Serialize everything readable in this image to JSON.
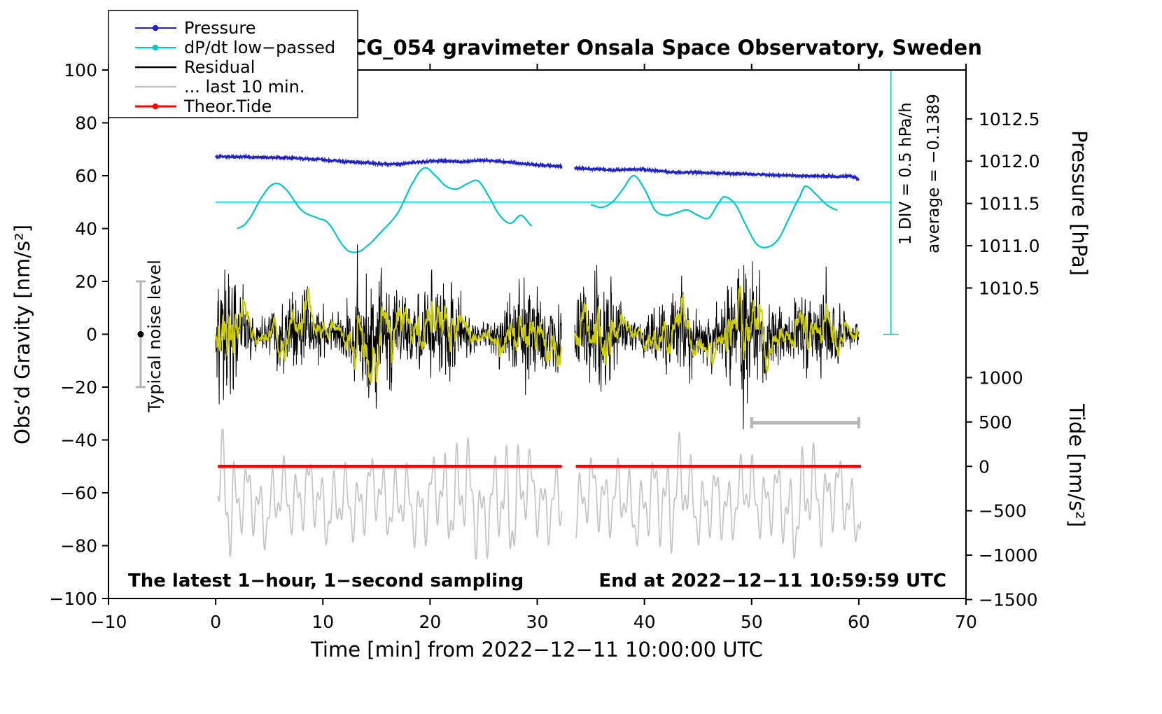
{
  "legend": {
    "items": [
      {
        "label": "Pressure",
        "color": "#2121cc",
        "marker": true,
        "width": 2
      },
      {
        "label": "dP/dt low−passed",
        "color": "#00c8c8",
        "marker": true,
        "width": 2
      },
      {
        "label": "Residual",
        "color": "#000000",
        "marker": false,
        "width": 2.5
      },
      {
        "label": "... last 10 min.",
        "color": "#c4c4c4",
        "marker": false,
        "width": 2.5
      },
      {
        "label": "Theor.Tide",
        "color": "#ff0000",
        "marker": true,
        "width": 3
      }
    ]
  },
  "axes": {
    "x": {
      "min": -10,
      "max": 70,
      "ticks": [
        -10,
        0,
        10,
        20,
        30,
        40,
        50,
        60,
        70
      ]
    },
    "y_left": {
      "min": -100,
      "max": 100,
      "ticks": [
        -100,
        -80,
        -60,
        -40,
        -20,
        0,
        20,
        40,
        60,
        80,
        100
      ]
    },
    "y_pressure": {
      "ticks": [
        1012.5,
        1012.0,
        1011.5,
        1011.0,
        1010.5
      ],
      "ref_value": 1012.5,
      "ref_gravity": 81.5,
      "gravity_per_unit": 32
    },
    "y_tide": {
      "ticks": [
        1000,
        500,
        0,
        -500,
        -1000,
        -1500
      ],
      "ref_value": 0,
      "ref_gravity": -50,
      "gravity_per_unit": 0.0336
    }
  },
  "annotations": {
    "noise_bar": {
      "label": "Typical noise level",
      "t": -7,
      "gravity_range": [
        -20,
        20
      ],
      "dot_gravity": 0,
      "color": "#b4b4b4"
    },
    "dpdt_scale": {
      "div_label": "1 DIV = 0.5 hPa/h",
      "average_label": "average = −0.1389",
      "t": 63,
      "gravity_range": [
        0,
        100
      ],
      "average_gravity": 50
    },
    "last10_bar": {
      "t_range": [
        50,
        60
      ],
      "gravity": -33.5,
      "color": "#b4b4b4"
    },
    "footer_left": "The latest 1−hour, 1−second sampling",
    "footer_right": "End at 2022−12−11 10:59:59 UTC"
  },
  "chart_data": {
    "type": "line",
    "title": "SCG_054 gravimeter Onsala Space Observatory, Sweden",
    "xlabel": "Time [min] from 2022−12−11 10:00:00 UTC",
    "ylabel_left": "Obs’d Gravity [nm/s²]",
    "ylabel_pressure": "Pressure [hPa]",
    "ylabel_tide": "Tide [nm/s²]",
    "xlim": [
      -10,
      70
    ],
    "ylim_left": [
      -100,
      100
    ],
    "time_gap_min": [
      32.3,
      33.5
    ],
    "series": [
      {
        "name": "Pressure",
        "unit": "hPa",
        "axis": "y_pressure",
        "color": "#2121cc",
        "style": "noisy-smooth",
        "width": 2,
        "jitter": 0.45,
        "segments": [
          [
            [
              0,
              1012.053
            ],
            [
              3,
              1012.047
            ],
            [
              6,
              1012.041
            ],
            [
              9,
              1012.025
            ],
            [
              12,
              1011.997
            ],
            [
              15,
              1011.972
            ],
            [
              17,
              1011.966
            ],
            [
              19,
              1011.991
            ],
            [
              21,
              1012.003
            ],
            [
              23,
              1011.994
            ],
            [
              25,
              1012.009
            ],
            [
              27,
              1011.991
            ],
            [
              29,
              1011.966
            ],
            [
              31,
              1011.947
            ],
            [
              32.3,
              1011.938
            ]
          ],
          [
            [
              33.5,
              1011.916
            ],
            [
              35,
              1011.906
            ],
            [
              37,
              1011.897
            ],
            [
              39,
              1011.903
            ],
            [
              41,
              1011.891
            ],
            [
              43,
              1011.869
            ],
            [
              45,
              1011.866
            ],
            [
              47,
              1011.856
            ],
            [
              49,
              1011.85
            ],
            [
              51,
              1011.841
            ],
            [
              53,
              1011.834
            ],
            [
              55,
              1011.825
            ],
            [
              57,
              1011.822
            ],
            [
              58.5,
              1011.816
            ],
            [
              59.3,
              1011.825
            ],
            [
              60,
              1011.781
            ]
          ]
        ]
      },
      {
        "name": "dP/dt low−passed",
        "unit": "hPa/h",
        "axis": "dpdt",
        "color": "#00c8c8",
        "style": "smooth",
        "width": 2.2,
        "average": -0.1389,
        "div": 0.5,
        "scale": {
          "ref_value": -0.1389,
          "ref_gravity": 50,
          "gravity_per_unit": 32
        },
        "segments": [
          [
            [
              2,
              -0.451
            ],
            [
              3,
              -0.358
            ],
            [
              4.5,
              -0.045
            ],
            [
              5.5,
              0.08
            ],
            [
              6.5,
              0.017
            ],
            [
              8,
              -0.233
            ],
            [
              9.5,
              -0.326
            ],
            [
              10.5,
              -0.389
            ],
            [
              12,
              -0.67
            ],
            [
              13,
              -0.733
            ],
            [
              14,
              -0.67
            ],
            [
              15.5,
              -0.483
            ],
            [
              17,
              -0.264
            ],
            [
              18.5,
              0.111
            ],
            [
              19.5,
              0.267
            ],
            [
              20.5,
              0.174
            ],
            [
              21.5,
              0.049
            ],
            [
              22.5,
              0.017
            ],
            [
              23.5,
              0.08
            ],
            [
              24.5,
              0.111
            ],
            [
              25.5,
              -0.076
            ],
            [
              26.5,
              -0.295
            ],
            [
              27.5,
              -0.389
            ],
            [
              28.5,
              -0.295
            ],
            [
              29.5,
              -0.42
            ]
          ],
          [
            [
              35,
              -0.17
            ],
            [
              36,
              -0.201
            ],
            [
              37,
              -0.139
            ],
            [
              38,
              0.017
            ],
            [
              39,
              0.174
            ],
            [
              40,
              0.017
            ],
            [
              41,
              -0.233
            ],
            [
              42,
              -0.295
            ],
            [
              43,
              -0.264
            ],
            [
              44,
              -0.233
            ],
            [
              45,
              -0.295
            ],
            [
              46,
              -0.326
            ],
            [
              47,
              -0.139
            ],
            [
              47.5,
              -0.076
            ],
            [
              48.5,
              -0.17
            ],
            [
              49.5,
              -0.42
            ],
            [
              50.5,
              -0.639
            ],
            [
              51.5,
              -0.67
            ],
            [
              52.5,
              -0.576
            ],
            [
              53.5,
              -0.326
            ],
            [
              54.5,
              -0.076
            ],
            [
              55,
              0.049
            ],
            [
              56,
              -0.045
            ],
            [
              57,
              -0.17
            ],
            [
              58,
              -0.233
            ]
          ]
        ]
      },
      {
        "name": "Residual",
        "unit": "nm/s²",
        "axis": "y_left",
        "color": "#000000",
        "style": "noise",
        "width": 1,
        "synthesis": {
          "seed": 12345,
          "segments": [
            [
              0,
              32.3
            ],
            [
              33.5,
              60
            ]
          ],
          "samples_per_min": 40,
          "ar": 0.35,
          "sigma_base": 6.5,
          "sigma_mod": [
            [
              0.9,
              1.0,
              2.5
            ],
            [
              0.37,
              2.0,
              2.0
            ]
          ],
          "spike_prob": 0.006,
          "spike_gain": 1.9,
          "clamp": 36
        }
      },
      {
        "name": "Residual low−passed",
        "unit": "nm/s²",
        "axis": "y_left",
        "color": "#cdcd00",
        "style": "ema-of-residual",
        "width": 2,
        "alpha": 0.06,
        "gain": 3
      },
      {
        "name": "Residual last 10 min (expanded)",
        "unit": "nm/s²",
        "axis": "y_left",
        "color": "#c4c4c4",
        "style": "smooth-noise",
        "width": 1.7,
        "synthesis": {
          "seed": 777,
          "segments": [
            [
              0.2,
              32.3
            ],
            [
              33.6,
              60.2
            ]
          ],
          "step": 0.02,
          "mean": -63,
          "components": [
            [
              1.15,
              9
            ],
            [
              0.52,
              5
            ],
            [
              2.9,
              4
            ],
            [
              7,
              2.5
            ]
          ],
          "bursts": [
            [
              1.1,
              0.7,
              0.9
            ],
            [
              23,
              2.2,
              0.5
            ],
            [
              27.5,
              1.3,
              0.7
            ],
            [
              42.5,
              1.6,
              0.5
            ],
            [
              55,
              2,
              0.4
            ]
          ],
          "clamp": [
            -85,
            -36
          ]
        }
      },
      {
        "name": "Theor.Tide",
        "unit": "nm/s²",
        "axis": "y_tide",
        "color": "#ff0000",
        "style": "flat",
        "value": 0,
        "width": 4.5,
        "segments": [
          [
            0.2,
            32.3
          ],
          [
            33.6,
            60.2
          ]
        ]
      }
    ]
  }
}
